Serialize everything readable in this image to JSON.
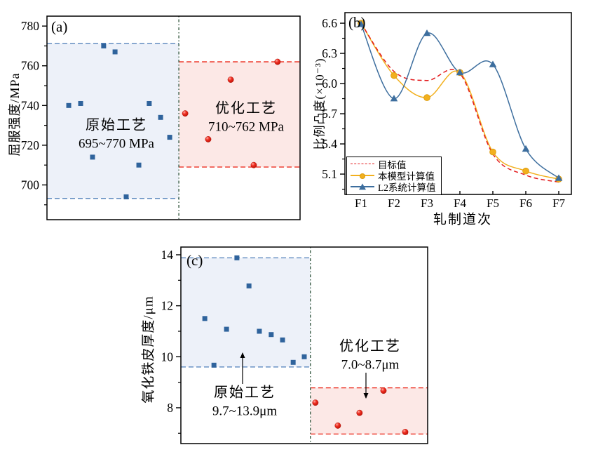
{
  "figure": {
    "background": "#ffffff"
  },
  "chart_data": [
    {
      "panel": "a",
      "type": "scatter",
      "label": "(a)",
      "ylabel": "屈服强度/MPa",
      "yticks": [
        700,
        720,
        740,
        760,
        780
      ],
      "minor_step": 10,
      "ylim": [
        682.5,
        785
      ],
      "divider_x": 0.521,
      "divider_color": "#2e5339",
      "regions": [
        {
          "label": "原始工艺",
          "range_label": "695~770 MPa",
          "y_low": 693.2,
          "y_high": 771.3,
          "x0": 0,
          "x1": 0.521,
          "fill": "#edf1f9",
          "line": "#4b7cb8"
        },
        {
          "label": "优化工艺",
          "range_label": "710~762 MPa",
          "y_low": 709,
          "y_high": 762,
          "x0": 0.521,
          "x1": 1,
          "fill": "#fce8e6",
          "line": "#ea1c0d"
        }
      ],
      "series": [
        {
          "name": "原始工艺",
          "marker": "square",
          "color": "#2f639c",
          "points": [
            [
              0.086,
              740
            ],
            [
              0.133,
              741
            ],
            [
              0.18,
              714
            ],
            [
              0.224,
              770
            ],
            [
              0.269,
              767
            ],
            [
              0.313,
              694
            ],
            [
              0.363,
              710
            ],
            [
              0.404,
              741
            ],
            [
              0.449,
              734
            ],
            [
              0.485,
              724
            ]
          ]
        },
        {
          "name": "优化工艺",
          "marker": "sphere",
          "color": "#ea1c0d",
          "points": [
            [
              0.546,
              736
            ],
            [
              0.637,
              723
            ],
            [
              0.726,
              753
            ],
            [
              0.817,
              710
            ],
            [
              0.911,
              762
            ]
          ]
        }
      ]
    },
    {
      "panel": "b",
      "type": "line",
      "label": "(b)",
      "xlabel": "轧制道次",
      "ylabel": "比例凸度(×10⁻³)",
      "categories": [
        "F1",
        "F2",
        "F3",
        "F4",
        "F5",
        "F6",
        "F7"
      ],
      "yticks": [
        5.1,
        5.4,
        5.7,
        6.0,
        6.3,
        6.6
      ],
      "minor_step": 0.15,
      "ylim": [
        4.898,
        6.705
      ],
      "legend_position": "bottom-left",
      "series": [
        {
          "name": "目标值",
          "line": "dashed",
          "marker": "none",
          "color": "#e31a1c",
          "values": [
            6.6,
            6.12,
            6.03,
            6.1,
            5.3,
            5.09,
            5.02
          ]
        },
        {
          "name": "本模型计算值",
          "line": "solid",
          "marker": "circle",
          "color": "#f2b01e",
          "values": [
            6.6,
            6.08,
            5.86,
            6.11,
            5.32,
            5.13,
            5.05
          ]
        },
        {
          "name": "L2系统计算值",
          "line": "solid",
          "marker": "triangle",
          "color": "#3d6e9e",
          "values": [
            6.59,
            5.85,
            6.5,
            6.11,
            6.19,
            5.35,
            5.06
          ]
        }
      ]
    },
    {
      "panel": "c",
      "type": "scatter",
      "label": "(c)",
      "ylabel": "氧化铁皮厚度/μm",
      "yticks": [
        8,
        10,
        12,
        14
      ],
      "minor_step": 1,
      "ylim": [
        6.595,
        14.303
      ],
      "divider_x": 0.525,
      "divider_color": "#2e5339",
      "regions": [
        {
          "label": "原始工艺",
          "range_label": "9.7~13.9μm",
          "y_low": 9.6,
          "y_high": 13.88,
          "x0": 0,
          "x1": 0.525,
          "fill": "#edf1f9",
          "line": "#4b7cb8"
        },
        {
          "label": "优化工艺",
          "range_label": "7.0~8.7μm",
          "y_low": 6.97,
          "y_high": 8.78,
          "x0": 0.525,
          "x1": 1,
          "fill": "#fce8e6",
          "line": "#ea1c0d"
        }
      ],
      "series": [
        {
          "name": "原始工艺",
          "marker": "square",
          "color": "#2f639c",
          "points": [
            [
              0.097,
              11.5
            ],
            [
              0.134,
              9.67
            ],
            [
              0.185,
              11.08
            ],
            [
              0.227,
              13.88
            ],
            [
              0.276,
              12.78
            ],
            [
              0.318,
              11.0
            ],
            [
              0.366,
              10.87
            ],
            [
              0.412,
              10.66
            ],
            [
              0.455,
              9.78
            ],
            [
              0.5,
              10.0
            ]
          ]
        },
        {
          "name": "优化工艺",
          "marker": "sphere",
          "color": "#ea1c0d",
          "points": [
            [
              0.545,
              8.2
            ],
            [
              0.636,
              7.3
            ],
            [
              0.724,
              7.8
            ],
            [
              0.821,
              8.67
            ],
            [
              0.909,
              7.05
            ]
          ]
        }
      ]
    }
  ]
}
